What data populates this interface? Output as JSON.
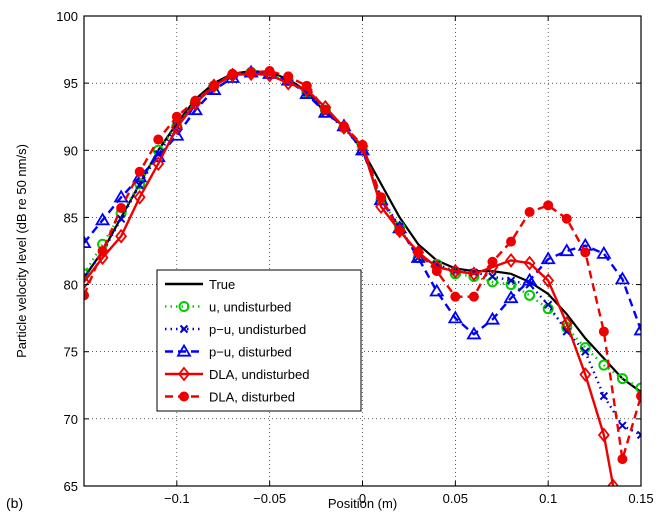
{
  "chart_data": {
    "type": "line",
    "panel_label": "(b)",
    "xlabel": "Position (m)",
    "ylabel": "Particle velocity level (dB re 50 nm/s)",
    "xlim": [
      -0.15,
      0.15
    ],
    "ylim": [
      65,
      100
    ],
    "xticks": [
      -0.1,
      -0.05,
      0,
      0.05,
      0.1,
      0.15
    ],
    "xtick_labels": [
      "−0.1",
      "−0.05",
      "0",
      "0.05",
      "0.1",
      "0.15"
    ],
    "yticks": [
      65,
      70,
      75,
      80,
      85,
      90,
      95,
      100
    ],
    "ytick_labels": [
      "65",
      "70",
      "75",
      "80",
      "85",
      "90",
      "95",
      "100"
    ],
    "grid": true,
    "legend_position": "bottom-center",
    "series": [
      {
        "name": "True",
        "color": "#000000",
        "linestyle": "solid",
        "marker": "none",
        "x": [
          -0.15,
          -0.14,
          -0.13,
          -0.12,
          -0.11,
          -0.1,
          -0.09,
          -0.08,
          -0.07,
          -0.06,
          -0.05,
          -0.04,
          -0.03,
          -0.02,
          -0.01,
          0,
          0.01,
          0.02,
          0.03,
          0.04,
          0.05,
          0.06,
          0.07,
          0.08,
          0.09,
          0.1,
          0.11,
          0.12,
          0.13,
          0.14,
          0.15
        ],
        "y": [
          80.5,
          82.5,
          85,
          87.5,
          90,
          92,
          93.8,
          95,
          95.7,
          95.9,
          95.8,
          95.3,
          94.4,
          92.8,
          91.8,
          90,
          87.5,
          85,
          83,
          81.8,
          81.2,
          81,
          81,
          80.8,
          80.2,
          79.3,
          77.8,
          76,
          74.5,
          73,
          72
        ]
      },
      {
        "name": "u, undisturbed",
        "color": "#00cc00",
        "linestyle": "dotted",
        "marker": "circle",
        "x": [
          -0.15,
          -0.14,
          -0.13,
          -0.12,
          -0.11,
          -0.1,
          -0.09,
          -0.08,
          -0.07,
          -0.06,
          -0.05,
          -0.04,
          -0.03,
          -0.02,
          -0.01,
          0,
          0.01,
          0.02,
          0.03,
          0.04,
          0.05,
          0.06,
          0.07,
          0.08,
          0.09,
          0.1,
          0.11,
          0.12,
          0.13,
          0.14,
          0.15
        ],
        "y": [
          80.8,
          83,
          85.3,
          87.5,
          90,
          91.8,
          93.6,
          94.8,
          95.6,
          95.8,
          95.7,
          95.2,
          94.3,
          93,
          91.7,
          90,
          86.3,
          84.3,
          82,
          81.5,
          80.8,
          80.6,
          80.2,
          80,
          79.2,
          78.2,
          76.8,
          75.3,
          74,
          73,
          72.3
        ]
      },
      {
        "name": "p−u, undisturbed",
        "color": "#0000cc",
        "linestyle": "dotted",
        "marker": "x",
        "x": [
          -0.15,
          -0.14,
          -0.13,
          -0.12,
          -0.11,
          -0.1,
          -0.09,
          -0.08,
          -0.07,
          -0.06,
          -0.05,
          -0.04,
          -0.03,
          -0.02,
          -0.01,
          0,
          0.01,
          0.02,
          0.03,
          0.04,
          0.05,
          0.06,
          0.07,
          0.08,
          0.09,
          0.1,
          0.11,
          0.12,
          0.13,
          0.14,
          0.15
        ],
        "y": [
          80.6,
          82.4,
          84.9,
          87.4,
          89.7,
          91.8,
          93.6,
          94.8,
          95.6,
          95.8,
          95.7,
          95.2,
          94.3,
          92.8,
          91.7,
          90,
          86.5,
          84.3,
          82,
          81.5,
          81,
          80.9,
          80.6,
          80.3,
          80,
          78.5,
          76.5,
          75,
          71.7,
          69.5,
          68.8
        ]
      },
      {
        "name": "p−u, disturbed",
        "color": "#0000ff",
        "linestyle": "dashed",
        "marker": "triangle",
        "x": [
          -0.15,
          -0.14,
          -0.13,
          -0.12,
          -0.11,
          -0.1,
          -0.09,
          -0.08,
          -0.07,
          -0.06,
          -0.05,
          -0.04,
          -0.03,
          -0.02,
          -0.01,
          0,
          0.01,
          0.02,
          0.03,
          0.04,
          0.05,
          0.06,
          0.07,
          0.08,
          0.09,
          0.1,
          0.11,
          0.12,
          0.13,
          0.14,
          0.15
        ],
        "y": [
          83.1,
          84.8,
          86.5,
          88,
          89.5,
          91.1,
          93,
          94.5,
          95.4,
          95.8,
          95.7,
          95.2,
          94.2,
          92.8,
          91.8,
          90,
          86.3,
          84.2,
          82,
          79.5,
          77.5,
          76.3,
          77.4,
          79,
          80.3,
          81.9,
          82.5,
          82.9,
          82.3,
          80.4,
          76.6
        ]
      },
      {
        "name": "DLA, undisturbed",
        "color": "#ee0000",
        "linestyle": "solid",
        "marker": "diamond",
        "x": [
          -0.15,
          -0.14,
          -0.13,
          -0.12,
          -0.11,
          -0.1,
          -0.09,
          -0.08,
          -0.07,
          -0.06,
          -0.05,
          -0.04,
          -0.03,
          -0.02,
          -0.01,
          0,
          0.01,
          0.02,
          0.03,
          0.04,
          0.05,
          0.06,
          0.07,
          0.08,
          0.09,
          0.1,
          0.11,
          0.12,
          0.13,
          0.135
        ],
        "y": [
          80.2,
          82,
          83.6,
          86.5,
          89,
          91.7,
          93.5,
          94.8,
          95.6,
          95.7,
          95.6,
          95,
          94.5,
          93.2,
          91.7,
          90.3,
          85.8,
          84,
          82.4,
          81.3,
          81,
          80.8,
          81.3,
          81.8,
          81.6,
          80.3,
          77.1,
          73.3,
          68.8,
          65
        ]
      },
      {
        "name": "DLA, disturbed",
        "color": "#ee0000",
        "linestyle": "dashed",
        "marker": "dot",
        "x": [
          -0.15,
          -0.14,
          -0.13,
          -0.12,
          -0.11,
          -0.1,
          -0.09,
          -0.08,
          -0.07,
          -0.06,
          -0.05,
          -0.04,
          -0.03,
          -0.02,
          -0.01,
          0,
          0.01,
          0.02,
          0.03,
          0.04,
          0.05,
          0.06,
          0.07,
          0.08,
          0.09,
          0.1,
          0.11,
          0.12,
          0.13,
          0.14,
          0.15
        ],
        "y": [
          79.2,
          82.5,
          85.7,
          88.4,
          90.8,
          92.5,
          93.7,
          94.8,
          95.7,
          95.8,
          95.9,
          95.5,
          94.8,
          93,
          91.8,
          90.4,
          86.5,
          84,
          82.4,
          81,
          79.1,
          79.1,
          81.7,
          83.2,
          85.4,
          85.9,
          84.9,
          82.4,
          76.5,
          67,
          71.7
        ]
      }
    ]
  }
}
